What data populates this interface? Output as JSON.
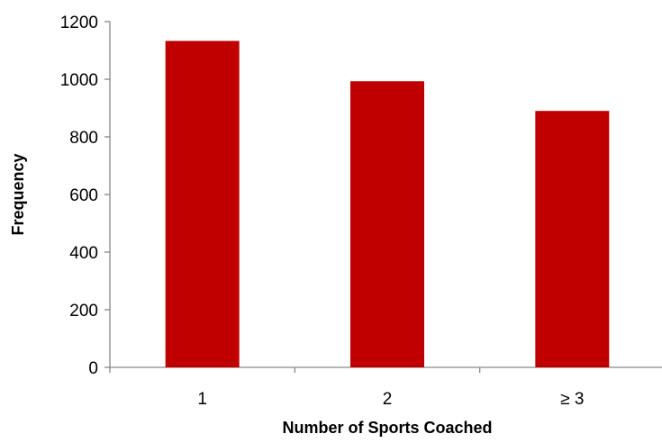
{
  "chart_data": {
    "type": "bar",
    "categories": [
      "1",
      "2",
      "≥ 3"
    ],
    "values": [
      1133,
      993,
      890
    ],
    "xlabel": "Number of Sports Coached",
    "ylabel": "Frequency",
    "ylim": [
      0,
      1200
    ],
    "yticks": [
      0,
      200,
      400,
      600,
      800,
      1000,
      1200
    ],
    "grid": false,
    "legend": "none",
    "bar_color": "#C00000",
    "axis_color": "#868686"
  }
}
